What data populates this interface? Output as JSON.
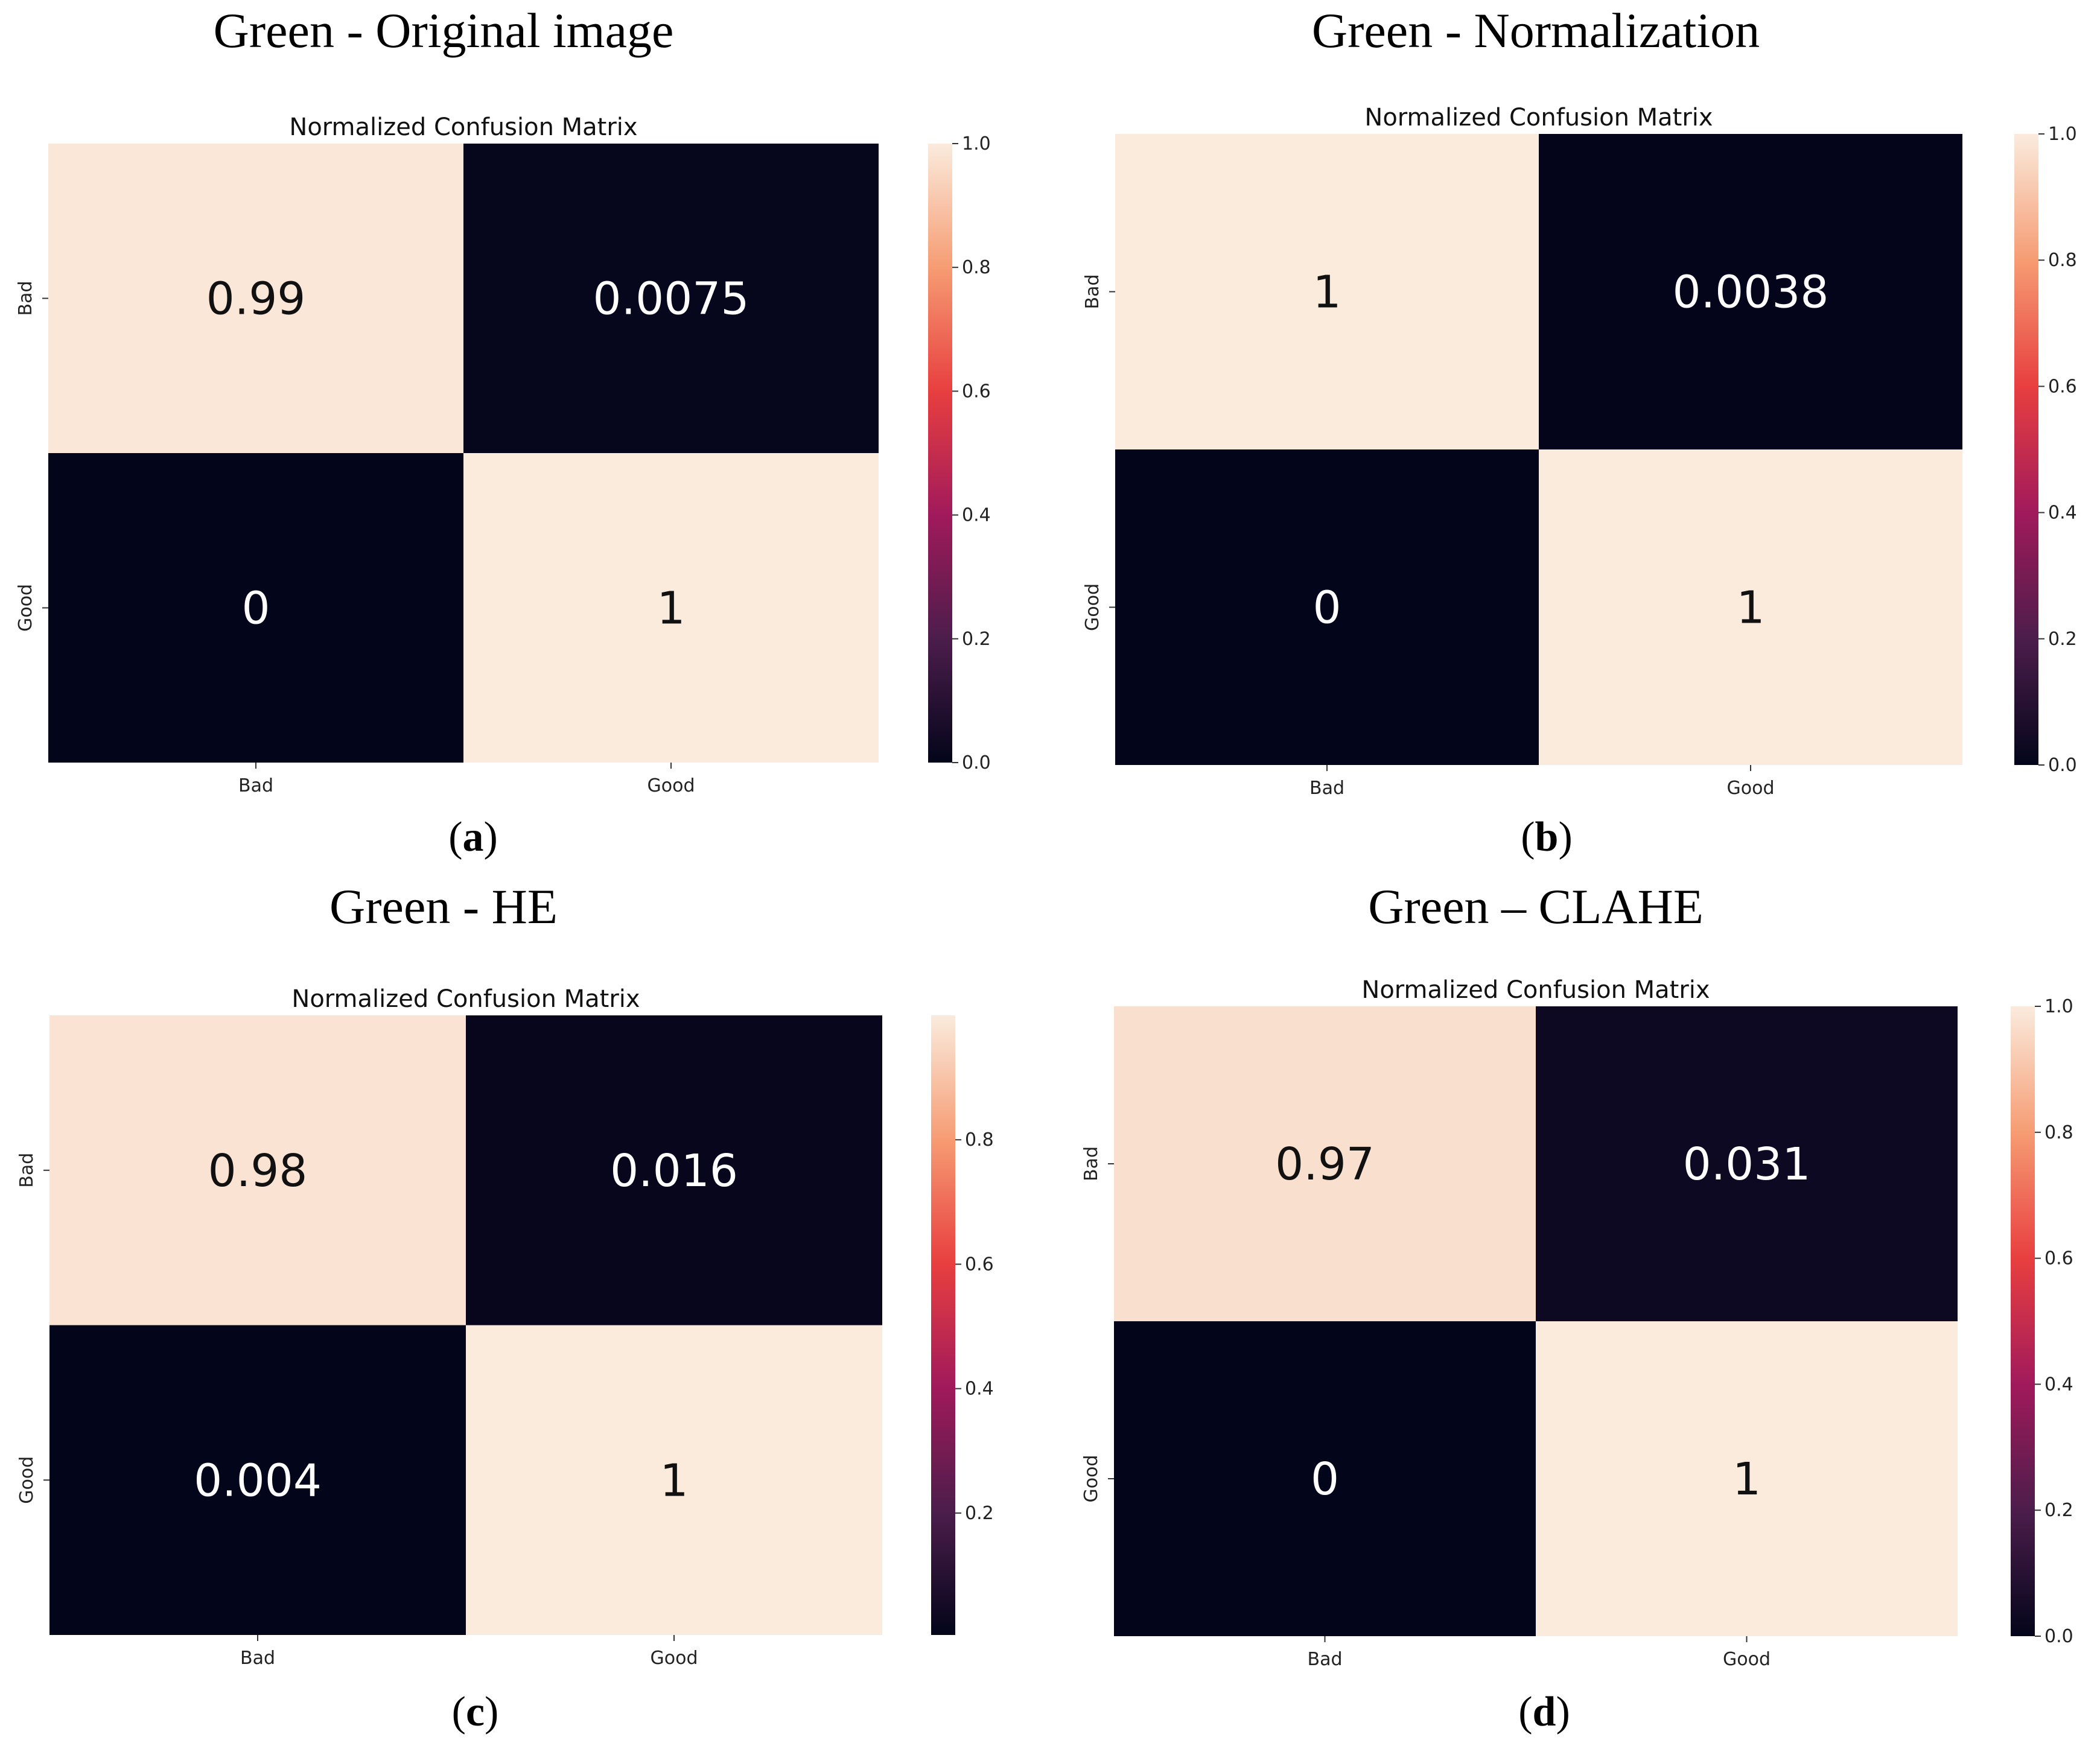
{
  "figure": {
    "background": "#ffffff",
    "text_color": "#000000",
    "colormap": "rocket",
    "colormap_stops": [
      "#03051a",
      "#4c1d4b",
      "#a11a5b",
      "#e83f3f",
      "#f69c73",
      "#faebdd"
    ]
  },
  "chart_data": [
    {
      "type": "heatmap",
      "panel_title": "Green - Original image",
      "title": "Normalized Confusion Matrix",
      "caption_letter": "a",
      "x_categories": [
        "Bad",
        "Good"
      ],
      "y_categories": [
        "Bad",
        "Good"
      ],
      "values": [
        [
          0.99,
          0.0075
        ],
        [
          0,
          1
        ]
      ],
      "labels": [
        [
          "0.99",
          "0.0075"
        ],
        [
          "0",
          "1"
        ]
      ],
      "colorbar": {
        "range": [
          0,
          1.0
        ],
        "ticks": [
          0.0,
          0.2,
          0.4,
          0.6,
          0.8,
          1.0
        ],
        "tick_labels": [
          "0.0",
          "0.2",
          "0.4",
          "0.6",
          "0.8",
          "1.0"
        ]
      }
    },
    {
      "type": "heatmap",
      "panel_title": "Green - Normalization",
      "title": "Normalized Confusion Matrix",
      "caption_letter": "b",
      "x_categories": [
        "Bad",
        "Good"
      ],
      "y_categories": [
        "Bad",
        "Good"
      ],
      "values": [
        [
          1,
          0.0038
        ],
        [
          0,
          1
        ]
      ],
      "labels": [
        [
          "1",
          "0.0038"
        ],
        [
          "0",
          "1"
        ]
      ],
      "colorbar": {
        "range": [
          0,
          1.0
        ],
        "ticks": [
          0.0,
          0.2,
          0.4,
          0.6,
          0.8,
          1.0
        ],
        "tick_labels": [
          "0.0",
          "0.2",
          "0.4",
          "0.6",
          "0.8",
          "1.0"
        ]
      }
    },
    {
      "type": "heatmap",
      "panel_title": "Green - HE",
      "title": "Normalized Confusion Matrix",
      "caption_letter": "c",
      "x_categories": [
        "Bad",
        "Good"
      ],
      "y_categories": [
        "Bad",
        "Good"
      ],
      "values": [
        [
          0.98,
          0.016
        ],
        [
          0.004,
          1
        ]
      ],
      "labels": [
        [
          "0.98",
          "0.016"
        ],
        [
          "0.004",
          "1"
        ]
      ],
      "colorbar": {
        "range": [
          0.004,
          1.0
        ],
        "ticks": [
          0.2,
          0.4,
          0.6,
          0.8
        ],
        "tick_labels": [
          "0.2",
          "0.4",
          "0.6",
          "0.8"
        ]
      }
    },
    {
      "type": "heatmap",
      "panel_title": "Green – CLAHE",
      "title": "Normalized Confusion Matrix",
      "caption_letter": "d",
      "x_categories": [
        "Bad",
        "Good"
      ],
      "y_categories": [
        "Bad",
        "Good"
      ],
      "values": [
        [
          0.97,
          0.031
        ],
        [
          0,
          1
        ]
      ],
      "labels": [
        [
          "0.97",
          "0.031"
        ],
        [
          "0",
          "1"
        ]
      ],
      "colorbar": {
        "range": [
          0,
          1.0
        ],
        "ticks": [
          0.0,
          0.2,
          0.4,
          0.6,
          0.8,
          1.0
        ],
        "tick_labels": [
          "0.0",
          "0.2",
          "0.4",
          "0.6",
          "0.8",
          "1.0"
        ]
      }
    }
  ]
}
